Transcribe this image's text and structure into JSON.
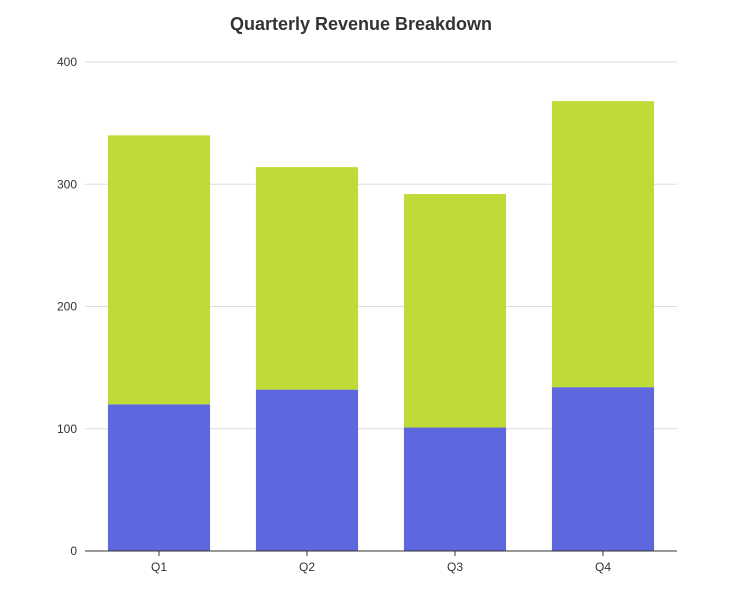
{
  "chart_data": {
    "type": "bar",
    "stacked": true,
    "title": "Quarterly Revenue Breakdown",
    "categories": [
      "Q1",
      "Q2",
      "Q3",
      "Q4"
    ],
    "series": [
      {
        "values": [
          120,
          132,
          101,
          134
        ],
        "color": "#5f67de"
      },
      {
        "values": [
          220,
          182,
          191,
          234
        ],
        "color": "#bfdb38"
      }
    ],
    "ylim": [
      0,
      400
    ],
    "yticks": [
      0,
      100,
      200,
      300,
      400
    ],
    "grid": true,
    "legend": "none"
  }
}
